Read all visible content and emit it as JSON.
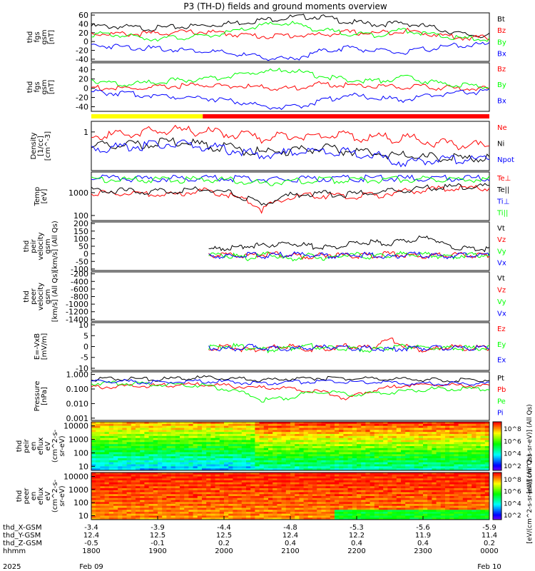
{
  "title": "P3 (TH-D) fields and ground moments overview",
  "chart_data": {
    "type": "line",
    "title": "P3 (TH-D) fields and ground moments overview",
    "time_axis": {
      "tick_labels": [
        "1800",
        "1900",
        "2000",
        "2100",
        "2200",
        "2300",
        "0000"
      ],
      "date_start": "Feb 09",
      "date_end": "Feb 10",
      "year": "2025",
      "rows": [
        {
          "label": "thd_X-GSM",
          "values": [
            "-3.4",
            "-3.9",
            "-4.4",
            "-4.8",
            "-5.3",
            "-5.6",
            "-5.9"
          ]
        },
        {
          "label": "thd_Y-GSM",
          "values": [
            "12.4",
            "12.5",
            "12.5",
            "12.4",
            "12.2",
            "11.9",
            "11.4"
          ]
        },
        {
          "label": "thd_Z-GSM",
          "values": [
            "-0.5",
            "-0.1",
            "0.2",
            "0.4",
            "0.4",
            "0.4",
            "0.2"
          ]
        },
        {
          "label": "hhmm",
          "values": [
            "1800",
            "1900",
            "2000",
            "2100",
            "2200",
            "2300",
            "0000"
          ]
        }
      ]
    },
    "bar_strip": {
      "yellow_end": "1920",
      "color_1": "#ffff00",
      "color_2": "#ff0000"
    },
    "panels": [
      {
        "ylabel": [
          "thd",
          "fgs",
          "gsm",
          "[nT]"
        ],
        "yticks": [
          "60",
          "40",
          "20",
          "0",
          "-20",
          "-40"
        ],
        "ylim": [
          -45,
          65
        ],
        "series": [
          {
            "name": "Bt",
            "color": "#000000",
            "values": [
              38,
              37,
              33,
              36,
              40,
              45,
              52,
              58,
              60,
              48,
              42,
              45,
              35,
              20,
              16
            ]
          },
          {
            "name": "Bz",
            "color": "#ff0000",
            "values": [
              22,
              20,
              21,
              24,
              25,
              20,
              15,
              17,
              18,
              24,
              22,
              28,
              20,
              12,
              12
            ]
          },
          {
            "name": "By",
            "color": "#00ff00",
            "values": [
              20,
              18,
              10,
              12,
              15,
              25,
              40,
              45,
              30,
              22,
              18,
              30,
              18,
              10,
              9
            ]
          },
          {
            "name": "Bx",
            "color": "#0000ff",
            "values": [
              -5,
              -8,
              -12,
              -15,
              -18,
              -25,
              -32,
              -38,
              -20,
              -10,
              -18,
              -22,
              -12,
              -5,
              -4
            ]
          }
        ]
      },
      {
        "ylabel": [
          "thd",
          "fgs",
          "gsm",
          "[nT]"
        ],
        "yticks": [
          "40",
          "20",
          "0",
          "-20",
          "-40"
        ],
        "ylim": [
          -50,
          55
        ],
        "series": [
          {
            "name": "Bz",
            "color": "#ff0000",
            "values": [
              5,
              2,
              3,
              8,
              10,
              8,
              5,
              2,
              12,
              10,
              8,
              6,
              5,
              3,
              2
            ]
          },
          {
            "name": "By",
            "color": "#00ff00",
            "values": [
              22,
              10,
              15,
              20,
              22,
              30,
              40,
              42,
              30,
              22,
              18,
              28,
              15,
              10,
              6
            ]
          },
          {
            "name": "Bx",
            "color": "#0000ff",
            "values": [
              -5,
              -8,
              -12,
              -15,
              -18,
              -25,
              -35,
              -40,
              -25,
              -12,
              -18,
              -22,
              -12,
              -6,
              -4
            ]
          }
        ]
      },
      {
        "ylabel": [
          "Density",
          "[1/cc]",
          "[cm^-3]"
        ],
        "yticks": [
          "1"
        ],
        "ylim": [
          0.08,
          2.0
        ],
        "scale": "log",
        "series": [
          {
            "name": "Ne",
            "color": "#ff0000",
            "values": [
              0.9,
              1.0,
              1.2,
              1.3,
              1.2,
              1.0,
              0.8,
              0.9,
              1.0,
              0.9,
              0.8,
              0.8,
              0.6,
              0.5,
              0.5
            ]
          },
          {
            "name": "Ni",
            "color": "#000000",
            "values": [
              0.45,
              0.5,
              0.55,
              0.6,
              0.5,
              0.4,
              0.3,
              0.35,
              0.4,
              0.35,
              0.3,
              0.25,
              0.22,
              0.2,
              0.22
            ]
          },
          {
            "name": "Npot",
            "color": "#0000ff",
            "values": [
              0.4,
              0.45,
              0.5,
              0.55,
              0.45,
              0.35,
              0.25,
              0.3,
              0.35,
              0.3,
              0.25,
              0.15,
              0.2,
              0.2,
              0.2
            ]
          }
        ]
      },
      {
        "ylabel": [
          "Temp",
          "[eV]"
        ],
        "yticks": [
          "1000",
          "100"
        ],
        "ylim": [
          60,
          8000
        ],
        "scale": "log",
        "series": [
          {
            "name": "Te⊥",
            "color": "#ff0000",
            "values": [
              1200,
              1100,
              1000,
              1000,
              1500,
              800,
              200,
              700,
              900,
              800,
              900,
              1300,
              1600,
              1800,
              1900
            ]
          },
          {
            "name": "Te||",
            "color": "#000000",
            "values": [
              1500,
              1400,
              1300,
              1400,
              1800,
              1000,
              300,
              900,
              1100,
              1000,
              1200,
              1600,
              2000,
              2200,
              2300
            ]
          },
          {
            "name": "Ti⊥",
            "color": "#0000ff",
            "values": [
              5000,
              5000,
              4800,
              4900,
              5000,
              5000,
              4500,
              4800,
              5000,
              4900,
              5000,
              5000,
              5000,
              5000,
              5000
            ]
          },
          {
            "name": "Ti||",
            "color": "#00ff00",
            "values": [
              4500,
              4500,
              4200,
              4300,
              4500,
              4200,
              3000,
              3800,
              4200,
              4000,
              4200,
              4500,
              4600,
              4600,
              4700
            ]
          }
        ]
      },
      {
        "ylabel": [
          "thd",
          "peir",
          "velocity",
          "gsm",
          "[km/s] (All Qs)"
        ],
        "yticks": [
          "200",
          "150",
          "100",
          "50",
          "0",
          "-50",
          "-100"
        ],
        "ylim": [
          -110,
          210
        ],
        "starts_at": 0.295,
        "series": [
          {
            "name": "Vt",
            "color": "#000000",
            "values": [
              40,
              50,
              60,
              70,
              80,
              60,
              50,
              70,
              90,
              80,
              100,
              120,
              60,
              40,
              40
            ]
          },
          {
            "name": "Vz",
            "color": "#ff0000",
            "values": [
              0,
              5,
              -5,
              10,
              0,
              -10,
              5,
              0,
              -5,
              10,
              0,
              -5,
              5,
              0,
              0
            ]
          },
          {
            "name": "Vy",
            "color": "#00ff00",
            "values": [
              10,
              0,
              -20,
              10,
              -30,
              0,
              -20,
              10,
              -10,
              0,
              10,
              0,
              -10,
              5,
              0
            ]
          },
          {
            "name": "Vx",
            "color": "#0000ff",
            "values": [
              0,
              -10,
              5,
              -5,
              10,
              0,
              -5,
              5,
              0,
              -10,
              5,
              0,
              -5,
              0,
              0
            ]
          }
        ]
      },
      {
        "ylabel": [
          "thd",
          "peer",
          "velocity",
          "gsm",
          "[km/s] (All Qs)"
        ],
        "yticks": [
          "-200",
          "-400",
          "-600",
          "-800",
          "-1000",
          "-1200",
          "-1400"
        ],
        "ylim": [
          -1450,
          -150
        ],
        "series": [
          {
            "name": "Vt",
            "color": "#000000",
            "values": []
          },
          {
            "name": "Vz",
            "color": "#ff0000",
            "values": []
          },
          {
            "name": "Vy",
            "color": "#00ff00",
            "values": []
          },
          {
            "name": "Vx",
            "color": "#0000ff",
            "values": []
          }
        ]
      },
      {
        "ylabel": [
          "E=-VxB",
          "[mV/m]"
        ],
        "yticks": [
          "10",
          "5",
          "0",
          "-5",
          "-10"
        ],
        "ylim": [
          -11,
          11
        ],
        "starts_at": 0.295,
        "series": [
          {
            "name": "Ez",
            "color": "#ff0000",
            "values": [
              0,
              0.5,
              -1,
              0,
              1,
              -0.5,
              0,
              1,
              0,
              4,
              0,
              -1,
              0.5,
              0,
              0
            ]
          },
          {
            "name": "Ey",
            "color": "#00ff00",
            "values": [
              0,
              1,
              0,
              -1,
              0,
              1,
              0,
              0,
              -1,
              0,
              1,
              0,
              0,
              0,
              0
            ]
          },
          {
            "name": "Ex",
            "color": "#0000ff",
            "values": [
              0,
              -0.5,
              0.5,
              0,
              -0.5,
              0,
              0.5,
              0,
              0,
              -0.5,
              0,
              0,
              0,
              0,
              0
            ]
          }
        ]
      },
      {
        "ylabel": [
          "Pressure",
          "[nPa]"
        ],
        "yticks": [
          "1.000",
          "0.100",
          "0.010",
          "0.001"
        ],
        "ylim": [
          0.0007,
          1.5
        ],
        "scale": "log",
        "series": [
          {
            "name": "Pt",
            "color": "#000000",
            "values": [
              0.55,
              0.6,
              0.55,
              0.6,
              0.7,
              0.6,
              0.5,
              0.6,
              0.65,
              0.6,
              0.6,
              0.55,
              0.5,
              0.5,
              0.5
            ]
          },
          {
            "name": "Pb",
            "color": "#ff0000",
            "values": [
              0.15,
              0.18,
              0.2,
              0.22,
              0.25,
              0.18,
              0.15,
              0.12,
              0.08,
              0.02,
              0.1,
              0.2,
              0.25,
              0.2,
              0.18
            ]
          },
          {
            "name": "Pe",
            "color": "#00ff00",
            "values": [
              0.3,
              0.3,
              0.25,
              0.25,
              0.2,
              0.08,
              0.02,
              0.03,
              0.08,
              0.05,
              0.06,
              0.08,
              0.12,
              0.12,
              0.12
            ]
          },
          {
            "name": "Pi",
            "color": "#0000ff",
            "values": [
              0.4,
              0.4,
              0.35,
              0.35,
              0.4,
              0.35,
              0.3,
              0.35,
              0.4,
              0.35,
              0.35,
              0.3,
              0.28,
              0.28,
              0.28
            ]
          }
        ]
      },
      {
        "ylabel": [
          "thd",
          "peir",
          "en",
          "eflux",
          "eV",
          "(cm^2-s-",
          "sr-eV)"
        ],
        "yticks": [
          "10000",
          "1000",
          "100",
          "10"
        ],
        "ylim": [
          5,
          20000
        ],
        "scale": "log",
        "kind": "spectrogram"
      },
      {
        "ylabel": [
          "thd",
          "peer",
          "en",
          "eflux",
          "eV",
          "(cm^2-s-",
          "sr-eV)"
        ],
        "yticks": [
          "10000",
          "1000",
          "100",
          "10"
        ],
        "ylim": [
          5,
          20000
        ],
        "scale": "log",
        "kind": "spectrogram"
      }
    ],
    "colorbars": [
      {
        "ticks": [
          "10^8",
          "10^6",
          "10^4",
          "10^2"
        ],
        "label": "[eV/(cm^2-s-sr-eV)] (All Qs)"
      },
      {
        "ticks": [
          "10^8",
          "10^6",
          "10^4",
          "10^2"
        ],
        "label": "[eV/(cm^2-s-sr-eV)] (All Qs)"
      }
    ]
  }
}
